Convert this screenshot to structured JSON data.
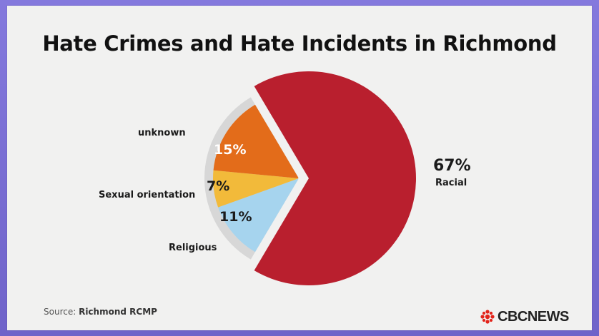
{
  "chart_data": {
    "type": "pie",
    "title": "Hate Crimes and Hate Incidents in Richmond",
    "slices": [
      {
        "label": "Racial",
        "value": 67,
        "value_label": "67%",
        "color": "#b91f2e",
        "exploded": true
      },
      {
        "label": "Religious",
        "value": 11,
        "value_label": "11%",
        "color": "#a6d4ee"
      },
      {
        "label": "Sexual orientation",
        "value": 7,
        "value_label": "7%",
        "color": "#f2ba3a"
      },
      {
        "label": "unknown",
        "value": 15,
        "value_label": "15%",
        "color": "#e36c1a"
      }
    ],
    "hidden_remainder_color": "#d7d7d7"
  },
  "source": {
    "prefix": "Source: ",
    "name": "Richmond RCMP"
  },
  "logo": {
    "text": "CBCNEWS"
  },
  "colors": {
    "frame": "#7a6fd1",
    "card": "#f1f1f0"
  }
}
